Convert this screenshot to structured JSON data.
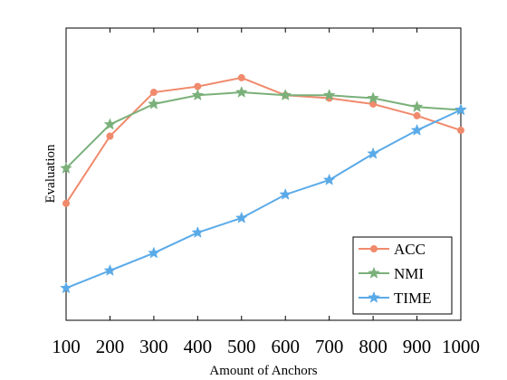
{
  "chart_data": {
    "type": "line",
    "xlabel": "Amount of Anchors",
    "ylabel": "Evaluation",
    "x": [
      100,
      200,
      300,
      400,
      500,
      600,
      700,
      800,
      900,
      1000
    ],
    "xlim": [
      100,
      1000
    ],
    "ylim": [
      0,
      1
    ],
    "y_ticks_shown": false,
    "grid": false,
    "legend_position": "bottom-right",
    "series": [
      {
        "name": "ACC",
        "marker": "circle",
        "color": "#f08a6c",
        "values": [
          0.4,
          0.63,
          0.78,
          0.8,
          0.83,
          0.77,
          0.76,
          0.74,
          0.7,
          0.65
        ]
      },
      {
        "name": "NMI",
        "marker": "star",
        "color": "#7ab07a",
        "values": [
          0.52,
          0.67,
          0.74,
          0.77,
          0.78,
          0.77,
          0.77,
          0.76,
          0.73,
          0.72
        ]
      },
      {
        "name": "TIME",
        "marker": "star",
        "color": "#5aaae8",
        "values": [
          0.11,
          0.17,
          0.23,
          0.3,
          0.35,
          0.43,
          0.48,
          0.57,
          0.65,
          0.72
        ]
      }
    ]
  }
}
